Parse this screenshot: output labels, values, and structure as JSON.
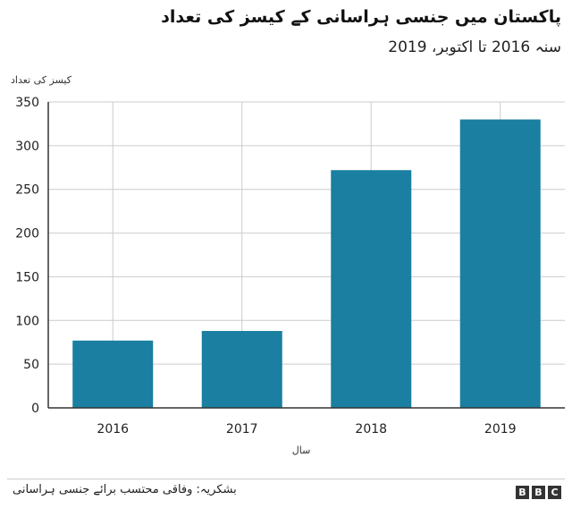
{
  "header": {
    "title": "پاکستان میں جنسی ہراسانی کے کیسز کی تعداد",
    "subtitle": "سنہ 2016 تا اکتوبر، 2019"
  },
  "footer": {
    "source": "بشکریہ: وفاقی محتسب برائے جنسی ہراسانی",
    "logo_letters": [
      "B",
      "B",
      "C"
    ]
  },
  "colors": {
    "bar": "#1a7fa0",
    "grid": "#cccccc",
    "axis": "#333333"
  },
  "chart_data": {
    "type": "bar",
    "title": "پاکستان میں جنسی ہراسانی کے کیسز کی تعداد",
    "subtitle": "سنہ 2016 تا اکتوبر، 2019",
    "xlabel": "سال",
    "ylabel": "کیسز کی تعداد",
    "categories": [
      "2016",
      "2017",
      "2018",
      "2019"
    ],
    "values": [
      77,
      88,
      272,
      330
    ],
    "ylim": [
      0,
      350
    ],
    "yticks": [
      0,
      50,
      100,
      150,
      200,
      250,
      300,
      350
    ],
    "grid": true,
    "legend": "none"
  }
}
